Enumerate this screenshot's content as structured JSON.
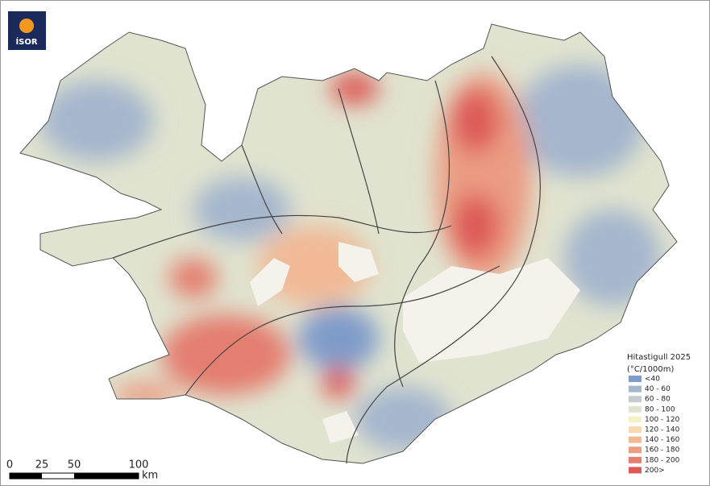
{
  "logo": {
    "text": "ÍSOR"
  },
  "legend": {
    "title": "Hitastigull 2025",
    "subtitle": "(°C/1000m)",
    "items": [
      {
        "label": "<40",
        "color": "#7f9bc9"
      },
      {
        "label": "40 - 60",
        "color": "#a5b6cd"
      },
      {
        "label": "60 - 80",
        "color": "#c6cbd0"
      },
      {
        "label": "80 - 100",
        "color": "#e0e3cf"
      },
      {
        "label": "100 - 120",
        "color": "#f7f1c8"
      },
      {
        "label": "120 - 140",
        "color": "#f6d9b1"
      },
      {
        "label": "140 - 160",
        "color": "#f1b996"
      },
      {
        "label": "160 - 180",
        "color": "#eb9c83"
      },
      {
        "label": "180 - 200",
        "color": "#e47e6f"
      },
      {
        "label": "200>",
        "color": "#dd5a56"
      }
    ]
  },
  "scale_bar": {
    "ticks": [
      0,
      25,
      50,
      100
    ],
    "unit": "km"
  }
}
